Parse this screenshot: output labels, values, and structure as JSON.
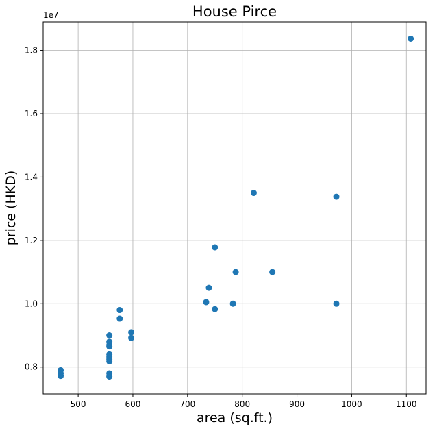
{
  "chart_data": {
    "type": "scatter",
    "title": "House Pirce",
    "xlabel": "area (sq.ft.)",
    "ylabel": "price (HKD)",
    "y_offset_label": "1e7",
    "xlim": [
      436,
      1136
    ],
    "ylim": [
      7150000,
      18900000
    ],
    "xticks": [
      500,
      600,
      700,
      800,
      900,
      1000,
      1100
    ],
    "xtick_labels": [
      "500",
      "600",
      "700",
      "800",
      "900",
      "1000",
      "1100"
    ],
    "yticks": [
      8000000,
      10000000,
      12000000,
      14000000,
      16000000,
      18000000
    ],
    "ytick_labels": [
      "0.8",
      "1.0",
      "1.2",
      "1.4",
      "1.6",
      "1.8"
    ],
    "grid": true,
    "marker_color": "#1f77b4",
    "points": [
      {
        "x": 468,
        "y": 7900000
      },
      {
        "x": 468,
        "y": 7800000
      },
      {
        "x": 468,
        "y": 7720000
      },
      {
        "x": 557,
        "y": 9000000
      },
      {
        "x": 557,
        "y": 8800000
      },
      {
        "x": 557,
        "y": 8700000
      },
      {
        "x": 557,
        "y": 8650000
      },
      {
        "x": 557,
        "y": 8400000
      },
      {
        "x": 557,
        "y": 8320000
      },
      {
        "x": 557,
        "y": 8250000
      },
      {
        "x": 557,
        "y": 8180000
      },
      {
        "x": 557,
        "y": 7800000
      },
      {
        "x": 557,
        "y": 7700000
      },
      {
        "x": 576,
        "y": 9800000
      },
      {
        "x": 576,
        "y": 9530000
      },
      {
        "x": 597,
        "y": 9100000
      },
      {
        "x": 597,
        "y": 8920000
      },
      {
        "x": 734,
        "y": 10050000
      },
      {
        "x": 739,
        "y": 10500000
      },
      {
        "x": 750,
        "y": 11780000
      },
      {
        "x": 750,
        "y": 9830000
      },
      {
        "x": 783,
        "y": 10000000
      },
      {
        "x": 788,
        "y": 11000000
      },
      {
        "x": 821,
        "y": 13500000
      },
      {
        "x": 855,
        "y": 11000000
      },
      {
        "x": 972,
        "y": 13380000
      },
      {
        "x": 972,
        "y": 10000000
      },
      {
        "x": 1108,
        "y": 18370000
      }
    ]
  }
}
